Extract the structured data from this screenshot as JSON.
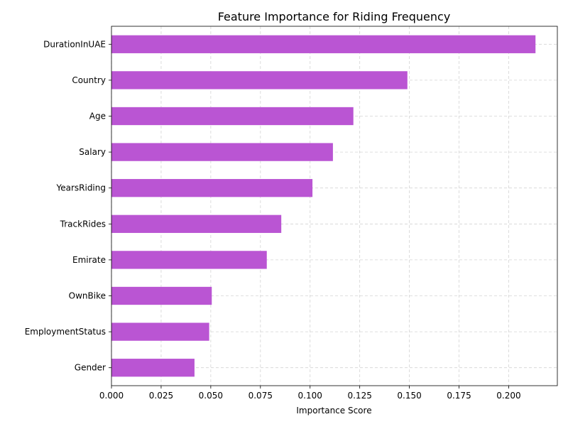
{
  "chart_data": {
    "type": "bar",
    "orientation": "horizontal",
    "title": "Feature Importance for Riding Frequency",
    "xlabel": "Importance Score",
    "ylabel": "",
    "categories": [
      "DurationInUAE",
      "Country",
      "Age",
      "Salary",
      "YearsRiding",
      "TrackRides",
      "Emirate",
      "OwnBike",
      "EmploymentStatus",
      "Gender"
    ],
    "values": [
      0.2135,
      0.149,
      0.1218,
      0.1115,
      0.1012,
      0.0855,
      0.0782,
      0.0505,
      0.0492,
      0.0418
    ],
    "xlim": [
      0,
      0.2245
    ],
    "xticks": [
      "0.000",
      "0.025",
      "0.050",
      "0.075",
      "0.100",
      "0.125",
      "0.150",
      "0.175",
      "0.200"
    ],
    "bar_color": "#ba55d3",
    "grid": true
  }
}
